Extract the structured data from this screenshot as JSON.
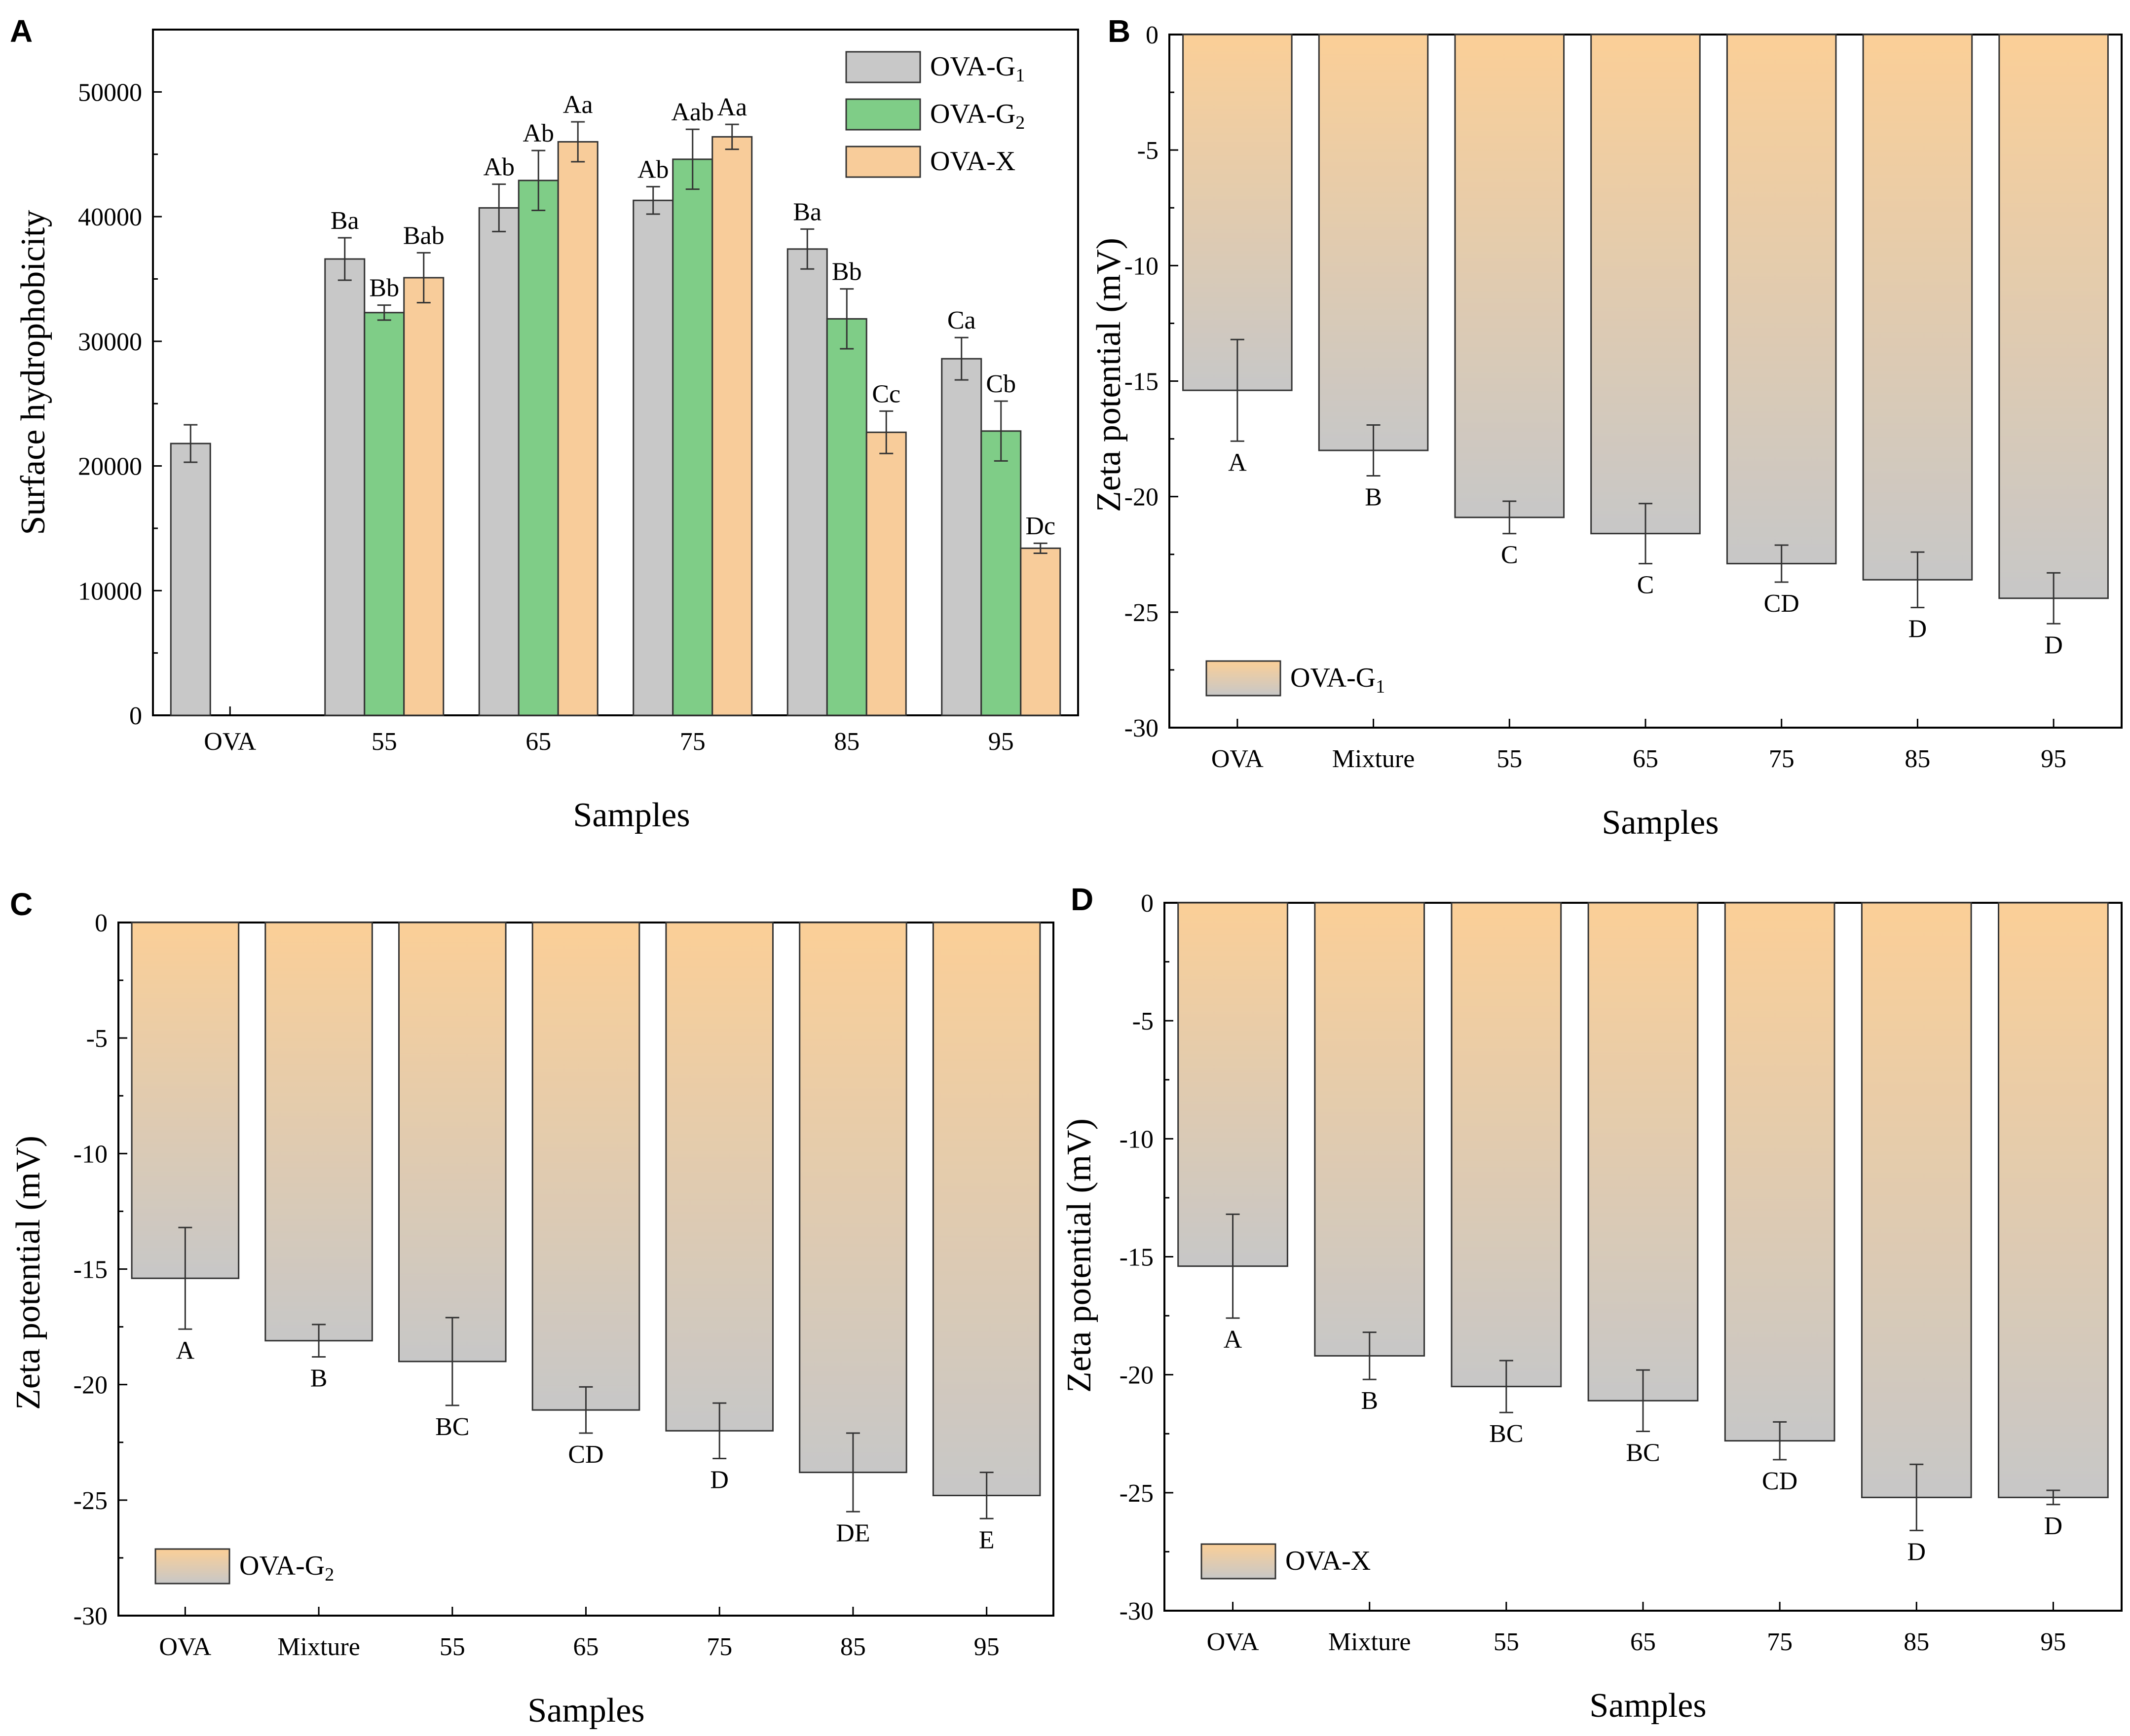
{
  "chart_data": [
    {
      "panel": "A",
      "type": "bar",
      "ylabel": "Surface hydrophobicity",
      "xlabel": "Samples",
      "ylim": [
        0,
        55000
      ],
      "yticks": [
        0,
        10000,
        20000,
        30000,
        40000,
        50000
      ],
      "categories": [
        "OVA",
        "55",
        "65",
        "75",
        "85",
        "95"
      ],
      "legend_position": "top-right",
      "series": [
        {
          "name": "OVA-G",
          "sub": "1",
          "color": "#c8c8c8",
          "values": [
            21800,
            36600,
            40700,
            41300,
            37400,
            28600
          ],
          "errors": [
            1500,
            1700,
            1900,
            1100,
            1600,
            1700
          ],
          "labels": [
            "",
            "Ba",
            "Ab",
            "Ab",
            "Ba",
            "Ca"
          ]
        },
        {
          "name": "OVA-G",
          "sub": "2",
          "color": "#7fcd87",
          "values": [
            null,
            32300,
            42900,
            44600,
            31800,
            22800
          ],
          "errors": [
            null,
            600,
            2400,
            2400,
            2400,
            2400
          ],
          "labels": [
            "",
            "Bb",
            "Ab",
            "Aab",
            "Bb",
            "Cb"
          ]
        },
        {
          "name": "OVA-X",
          "sub": "",
          "color": "#f8cc9a",
          "values": [
            null,
            35100,
            46000,
            46400,
            22700,
            13400
          ],
          "errors": [
            null,
            2000,
            1600,
            1000,
            1700,
            400
          ],
          "labels": [
            "",
            "Bab",
            "Aa",
            "Aa",
            "Cc",
            "Dc"
          ]
        }
      ]
    },
    {
      "panel": "B",
      "type": "bar",
      "ylabel": "Zeta potential (mV)",
      "xlabel": "Samples",
      "ylim": [
        -30,
        0
      ],
      "yticks": [
        0,
        -5,
        -10,
        -15,
        -20,
        -25,
        -30
      ],
      "categories": [
        "OVA",
        "Mixture",
        "55",
        "65",
        "75",
        "85",
        "95"
      ],
      "legend": {
        "name": "OVA-G",
        "sub": "1"
      },
      "legend_position": "bottom-left",
      "values": [
        -15.4,
        -18.0,
        -20.9,
        -21.6,
        -22.9,
        -23.6,
        -24.4
      ],
      "errors": [
        2.2,
        1.1,
        0.7,
        1.3,
        0.8,
        1.2,
        1.1
      ],
      "labels": [
        "A",
        "B",
        "C",
        "C",
        "CD",
        "D",
        "D"
      ]
    },
    {
      "panel": "C",
      "type": "bar",
      "ylabel": "Zeta potential (mV)",
      "xlabel": "Samples",
      "ylim": [
        -30,
        0
      ],
      "yticks": [
        0,
        -5,
        -10,
        -15,
        -20,
        -25,
        -30
      ],
      "categories": [
        "OVA",
        "Mixture",
        "55",
        "65",
        "75",
        "85",
        "95"
      ],
      "legend": {
        "name": "OVA-G",
        "sub": "2"
      },
      "legend_position": "bottom-left",
      "values": [
        -15.4,
        -18.1,
        -19.0,
        -21.1,
        -22.0,
        -23.8,
        -24.8
      ],
      "errors": [
        2.2,
        0.7,
        1.9,
        1.0,
        1.2,
        1.7,
        1.0
      ],
      "labels": [
        "A",
        "B",
        "BC",
        "CD",
        "D",
        "DE",
        "E"
      ]
    },
    {
      "panel": "D",
      "type": "bar",
      "ylabel": "Zeta potential (mV)",
      "xlabel": "Samples",
      "ylim": [
        -30,
        0
      ],
      "yticks": [
        0,
        -5,
        -10,
        -15,
        -20,
        -25,
        -30
      ],
      "categories": [
        "OVA",
        "Mixture",
        "55",
        "65",
        "75",
        "85",
        "95"
      ],
      "legend": {
        "name": "OVA-X",
        "sub": ""
      },
      "legend_position": "bottom-left",
      "values": [
        -15.4,
        -19.2,
        -20.5,
        -21.1,
        -22.8,
        -25.2,
        -25.2
      ],
      "errors": [
        2.2,
        1.0,
        1.1,
        1.3,
        0.8,
        1.4,
        0.3
      ],
      "labels": [
        "A",
        "B",
        "BC",
        "BC",
        "CD",
        "D",
        "D"
      ]
    }
  ]
}
